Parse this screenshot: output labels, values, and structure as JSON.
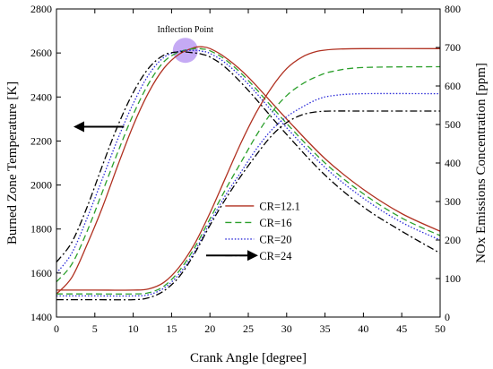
{
  "chart_data": {
    "type": "line",
    "xlabel": "Crank Angle [degree]",
    "ylabel_left": "Burned Zone Temperature [K]",
    "ylabel_right": "NOx Emissions Concentration [ppm]",
    "xlim": [
      0,
      50
    ],
    "ylim_left": [
      1400,
      2800
    ],
    "ylim_right": [
      0,
      800
    ],
    "x_ticks": [
      0,
      5,
      10,
      15,
      20,
      25,
      30,
      35,
      40,
      45,
      50
    ],
    "y_left_ticks": [
      1400,
      1600,
      1800,
      2000,
      2200,
      2400,
      2600,
      2800
    ],
    "y_right_ticks": [
      0,
      100,
      200,
      300,
      400,
      500,
      600,
      700,
      800
    ],
    "annotation": "Inflection Point",
    "legend_position": "center-right",
    "grid": false,
    "series_styles": [
      {
        "name": "CR=12.1",
        "color": "#b03020",
        "dash": ""
      },
      {
        "name": "CR=16",
        "color": "#2ca02c",
        "dash": "7,4"
      },
      {
        "name": "CR=20",
        "color": "#2b2bd8",
        "dash": "1.5,2"
      },
      {
        "name": "CR=24",
        "color": "#000000",
        "dash": "8,3,2,3"
      }
    ],
    "temperature_series": [
      {
        "name": "CR=12.1",
        "axis": "left",
        "x": [
          0,
          2,
          4,
          6,
          8,
          10,
          12,
          14,
          16,
          18,
          19,
          20,
          22,
          25,
          30,
          35,
          40,
          45,
          50
        ],
        "y": [
          1505,
          1580,
          1730,
          1900,
          2090,
          2270,
          2420,
          2530,
          2595,
          2625,
          2628,
          2620,
          2580,
          2490,
          2300,
          2120,
          1980,
          1870,
          1790
        ]
      },
      {
        "name": "CR=16",
        "axis": "left",
        "x": [
          0,
          2,
          4,
          6,
          8,
          10,
          12,
          14,
          16,
          18,
          19,
          20,
          22,
          25,
          30,
          35,
          40,
          45,
          50
        ],
        "y": [
          1560,
          1640,
          1790,
          1970,
          2150,
          2320,
          2460,
          2560,
          2605,
          2620,
          2618,
          2610,
          2570,
          2475,
          2280,
          2100,
          1960,
          1850,
          1770
        ]
      },
      {
        "name": "CR=20",
        "axis": "left",
        "x": [
          0,
          2,
          4,
          6,
          8,
          10,
          12,
          14,
          16,
          18,
          19,
          20,
          22,
          25,
          30,
          35,
          40,
          45,
          50
        ],
        "y": [
          1600,
          1690,
          1850,
          2030,
          2210,
          2370,
          2500,
          2580,
          2608,
          2612,
          2608,
          2598,
          2555,
          2458,
          2260,
          2080,
          1940,
          1830,
          1750
        ]
      },
      {
        "name": "CR=24",
        "axis": "left",
        "x": [
          0,
          2,
          4,
          6,
          8,
          10,
          12,
          14,
          16,
          18,
          19,
          20,
          22,
          25,
          30,
          35,
          40,
          45,
          50
        ],
        "y": [
          1650,
          1740,
          1900,
          2090,
          2270,
          2420,
          2530,
          2590,
          2605,
          2600,
          2594,
          2582,
          2535,
          2430,
          2230,
          2045,
          1900,
          1790,
          1690
        ]
      }
    ],
    "nox_series": [
      {
        "name": "CR=12.1",
        "axis": "right",
        "x": [
          0,
          5,
          10,
          12,
          14,
          16,
          18,
          20,
          22,
          24,
          26,
          28,
          30,
          32,
          34,
          36,
          40,
          50
        ],
        "y": [
          70,
          70,
          70,
          73,
          90,
          130,
          190,
          270,
          360,
          450,
          530,
          595,
          645,
          675,
          690,
          695,
          697,
          697
        ]
      },
      {
        "name": "CR=16",
        "axis": "right",
        "x": [
          0,
          5,
          10,
          12,
          14,
          16,
          18,
          20,
          22,
          24,
          26,
          28,
          30,
          32,
          34,
          36,
          40,
          50
        ],
        "y": [
          60,
          60,
          60,
          63,
          80,
          120,
          180,
          255,
          330,
          400,
          470,
          530,
          575,
          605,
          625,
          638,
          648,
          650
        ]
      },
      {
        "name": "CR=20",
        "axis": "right",
        "x": [
          0,
          5,
          10,
          12,
          14,
          16,
          18,
          20,
          22,
          24,
          26,
          28,
          30,
          32,
          34,
          36,
          40,
          50
        ],
        "y": [
          55,
          55,
          55,
          58,
          75,
          112,
          170,
          245,
          315,
          375,
          435,
          485,
          520,
          545,
          565,
          575,
          580,
          580
        ]
      },
      {
        "name": "CR=24",
        "axis": "right",
        "x": [
          0,
          5,
          10,
          12,
          14,
          16,
          18,
          20,
          22,
          24,
          26,
          28,
          30,
          32,
          34,
          36,
          40,
          50
        ],
        "y": [
          45,
          45,
          45,
          50,
          68,
          105,
          165,
          238,
          305,
          365,
          420,
          470,
          505,
          525,
          533,
          535,
          535,
          535
        ]
      }
    ]
  }
}
